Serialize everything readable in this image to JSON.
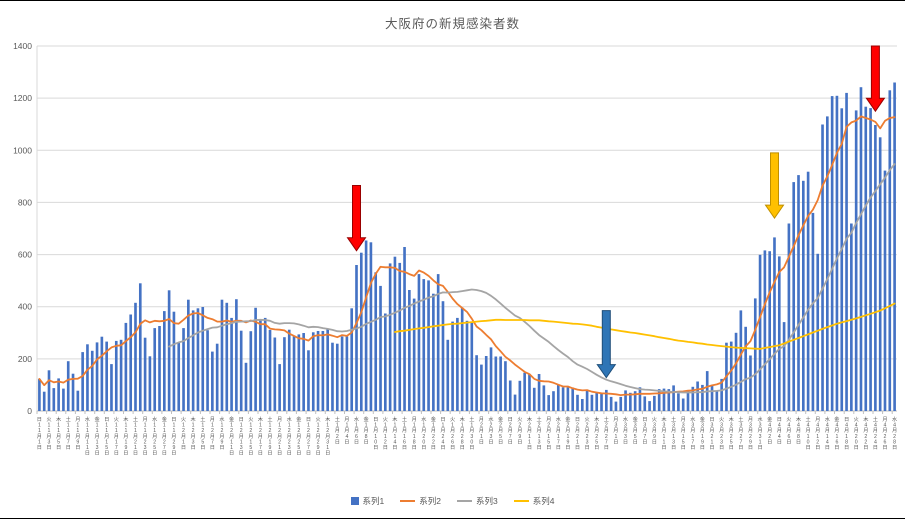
{
  "title_bar": "大阪府の新規感染者数",
  "chart_data": {
    "type": "combo_bar_line",
    "title": "大阪府の新規感染者数",
    "xlabel": "",
    "ylabel": "",
    "ylim": [
      0,
      1400
    ],
    "yticks": [
      0,
      200,
      400,
      600,
      800,
      1000,
      1200,
      1400
    ],
    "grid": true,
    "legend_position": "bottom",
    "n_points": 179,
    "x_label_every": 2,
    "x_labels": [
      "日11月1日",
      "火11月3日",
      "木11月5日",
      "土11月7日",
      "月11月9日",
      "水11月11日",
      "金11月13日",
      "日11月15日",
      "火11月17日",
      "木11月19日",
      "土11月21日",
      "月11月23日",
      "水11月25日",
      "金11月27日",
      "日11月29日",
      "火12月1日",
      "木12月3日",
      "土12月5日",
      "月12月7日",
      "水12月9日",
      "金12月11日",
      "日12月13日",
      "火12月15日",
      "木12月17日",
      "土12月19日",
      "月12月21日",
      "水12月23日",
      "金12月25日",
      "日12月27日",
      "火12月29日",
      "木12月31日",
      "土1月2日",
      "月1月4日",
      "水1月6日",
      "金1月8日",
      "日1月10日",
      "火1月12日",
      "木1月14日",
      "土1月16日",
      "月1月18日",
      "水1月20日",
      "金1月22日",
      "日1月24日",
      "火1月26日",
      "木1月28日",
      "土1月30日",
      "月2月1日",
      "水2月3日",
      "金2月5日",
      "日2月7日",
      "火2月9日",
      "木2月11日",
      "土2月13日",
      "月2月15日",
      "水2月17日",
      "金2月19日",
      "日2月21日",
      "火2月23日",
      "木2月25日",
      "土2月27日",
      "月3月1日",
      "水3月3日",
      "金3月5日",
      "日3月7日",
      "火3月9日",
      "木3月11日",
      "土3月13日",
      "月3月15日",
      "水3月17日",
      "金3月19日",
      "日3月21日",
      "火3月23日",
      "木3月25日",
      "土3月27日",
      "月3月29日",
      "水3月31日",
      "金4月2日",
      "日4月4日",
      "火4月6日",
      "木4月8日",
      "土4月10日",
      "月4月12日",
      "水4月14日",
      "金4月16日",
      "日4月18日",
      "火4月20日",
      "木4月22日",
      "土4月24日",
      "月4月26日",
      "水4月28日"
    ],
    "series": [
      {
        "name": "系列1",
        "type": "bar",
        "color": "#4472C4",
        "start_index": 0,
        "values": [
          123,
          74,
          156,
          88,
          125,
          86,
          191,
          143,
          78,
          226,
          256,
          231,
          263,
          285,
          266,
          180,
          269,
          273,
          338,
          370,
          415,
          490,
          281,
          210,
          318,
          326,
          383,
          463,
          381,
          262,
          318,
          427,
          386,
          394,
          399,
          310,
          228,
          258,
          427,
          415,
          357,
          429,
          308,
          185,
          306,
          396,
          351,
          357,
          311,
          282,
          180,
          283,
          312,
          289,
          294,
          299,
          233,
          302,
          307,
          307,
          313,
          262,
          258,
          286,
          286,
          394,
          560,
          607,
          654,
          647,
          532,
          480,
          374,
          566,
          592,
          568,
          629,
          464,
          431,
          525,
          506,
          501,
          450,
          525,
          421,
          273,
          343,
          357,
          397,
          346,
          338,
          214,
          178,
          211,
          244,
          209,
          209,
          191,
          117,
          63,
          116,
          147,
          141,
          89,
          142,
          98,
          61,
          76,
          100,
          91,
          91,
          90,
          62,
          46,
          79,
          62,
          69,
          70,
          81,
          54,
          36,
          54,
          79,
          70,
          76,
          91,
          56,
          38,
          58,
          84,
          86,
          84,
          98,
          68,
          48,
          78,
          93,
          113,
          100,
          153,
          100,
          79,
          123,
          262,
          266,
          300,
          386,
          323,
          213,
          432,
          599,
          616,
          613,
          666,
          593,
          341,
          719,
          878,
          905,
          883,
          918,
          760,
          603,
          1099,
          1130,
          1208,
          1209,
          1161,
          1220,
          719,
          1153,
          1242,
          1167,
          1162,
          1097,
          1050,
          922,
          1230,
          1260
        ]
      },
      {
        "name": "系列2",
        "type": "line",
        "color": "#ED7D31",
        "start_index": 0,
        "values": [
          123,
          99,
          118,
          110,
          113,
          109,
          120,
          123,
          124,
          134,
          158,
          173,
          198,
          212,
          229,
          244,
          250,
          252,
          268,
          283,
          302,
          334,
          348,
          340,
          346,
          344,
          346,
          353,
          337,
          335,
          350,
          366,
          374,
          376,
          367,
          357,
          352,
          343,
          343,
          347,
          342,
          346,
          346,
          340,
          347,
          342,
          333,
          333,
          316,
          313,
          312,
          309,
          297,
          288,
          279,
          277,
          270,
          287,
          291,
          290,
          294,
          289,
          283,
          291,
          288,
          301,
          337,
          379,
          435,
          491,
          526,
          553,
          551,
          551,
          549,
          537,
          534,
          525,
          518,
          539,
          531,
          518,
          501,
          486,
          480,
          457,
          431,
          410,
          395,
          380,
          354,
          324,
          310,
          292,
          275,
          249,
          229,
          208,
          194,
          178,
          164,
          150,
          141,
          123,
          116,
          114,
          113,
          108,
          101,
          94,
          94,
          87,
          82,
          79,
          80,
          74,
          71,
          68,
          67,
          66,
          64,
          61,
          63,
          63,
          64,
          66,
          66,
          66,
          67,
          68,
          70,
          71,
          72,
          74,
          75,
          78,
          79,
          83,
          85,
          93,
          98,
          102,
          109,
          133,
          155,
          183,
          217,
          248,
          268,
          312,
          360,
          410,
          455,
          495,
          533,
          551,
          592,
          632,
          674,
          712,
          748,
          772,
          809,
          864,
          900,
          943,
          990,
          1024,
          1090,
          1107,
          1114,
          1130,
          1124,
          1118,
          1109,
          1084,
          1113,
          1124,
          1127
        ]
      },
      {
        "name": "系列3",
        "type": "line",
        "color": "#A5A5A5",
        "start_index": 27,
        "values": [
          247,
          256,
          263,
          268,
          280,
          290,
          301,
          308,
          314,
          320,
          321,
          327,
          333,
          337,
          342,
          343,
          344,
          345,
          349,
          350,
          349,
          346,
          338,
          335,
          337,
          337,
          336,
          332,
          327,
          321,
          323,
          322,
          318,
          315,
          311,
          306,
          305,
          307,
          312,
          317,
          323,
          334,
          342,
          350,
          360,
          363,
          369,
          377,
          385,
          396,
          403,
          412,
          420,
          427,
          435,
          440,
          449,
          455,
          454,
          456,
          457,
          460,
          463,
          466,
          464,
          460,
          453,
          442,
          428,
          412,
          396,
          381,
          366,
          357,
          342,
          326,
          308,
          291,
          278,
          265,
          249,
          234,
          220,
          207,
          191,
          178,
          170,
          161,
          150,
          139,
          129,
          120,
          114,
          109,
          103,
          97,
          92,
          88,
          84,
          82,
          81,
          79,
          77,
          75,
          74,
          73,
          72,
          71,
          71,
          71,
          72,
          72,
          75,
          76,
          77,
          79,
          86,
          93,
          101,
          112,
          122,
          128,
          141,
          160,
          179,
          199,
          219,
          238,
          249,
          273,
          301,
          330,
          359,
          388,
          413,
          433,
          469,
          506,
          545,
          585,
          621,
          661,
          684,
          721,
          755,
          788,
          819,
          844,
          870,
          895,
          924,
          947
        ]
      },
      {
        "name": "系列4",
        "type": "line",
        "color": "#FFC000",
        "start_index": 74,
        "values": [
          303,
          306,
          308,
          311,
          314,
          317,
          319,
          322,
          325,
          327,
          330,
          332,
          334,
          335,
          337,
          339,
          341,
          343,
          345,
          346,
          348,
          350,
          350,
          349,
          349,
          349,
          349,
          349,
          348,
          348,
          348,
          346,
          344,
          343,
          341,
          339,
          337,
          335,
          334,
          332,
          330,
          327,
          323,
          320,
          317,
          313,
          310,
          307,
          304,
          301,
          299,
          296,
          293,
          290,
          287,
          283,
          280,
          277,
          273,
          270,
          268,
          265,
          263,
          260,
          258,
          255,
          253,
          251,
          249,
          247,
          245,
          243,
          242,
          241,
          240,
          239,
          238,
          242,
          245,
          249,
          252,
          259,
          266,
          273,
          280,
          287,
          294,
          301,
          308,
          315,
          322,
          328,
          335,
          340,
          345,
          350,
          355,
          361,
          367,
          373,
          379,
          385,
          394,
          403,
          412
        ]
      }
    ],
    "annotations": [
      {
        "name": "red-arrow-early-january",
        "shape": "down-arrow",
        "fill": "#FF0000",
        "stroke": "#990000",
        "day_index": 66,
        "value_top": 865,
        "value_bottom": 615
      },
      {
        "name": "blue-arrow-late-february",
        "shape": "down-arrow",
        "fill": "#2E75B6",
        "stroke": "#1F4E79",
        "day_index": 118,
        "value_top": 385,
        "value_bottom": 128
      },
      {
        "name": "yellow-arrow-early-april",
        "shape": "down-arrow",
        "fill": "#FFC000",
        "stroke": "#BF8F00",
        "day_index": 153,
        "value_top": 990,
        "value_bottom": 740
      },
      {
        "name": "red-arrow-late-april",
        "shape": "down-arrow",
        "fill": "#FF0000",
        "stroke": "#990000",
        "day_index": 174,
        "value_top": 1400,
        "value_bottom": 1150
      }
    ],
    "axis_colors": {
      "gridline": "#D9D9D9",
      "axis_line": "#BFBFBF",
      "tick_label": "#595959"
    }
  }
}
